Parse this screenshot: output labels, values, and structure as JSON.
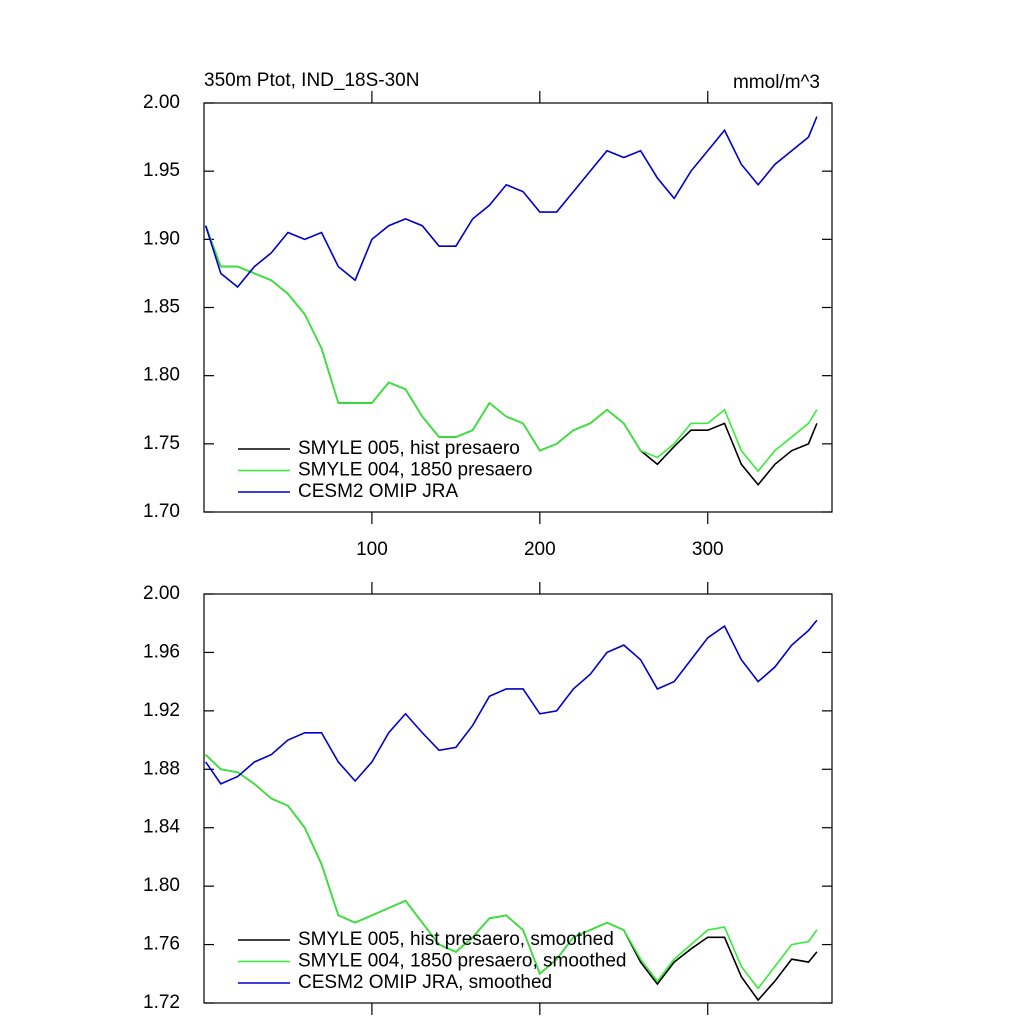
{
  "chart_data": [
    {
      "type": "line",
      "title": "350m Ptot, IND_18S-30N",
      "right_title": "mmol/m^3",
      "x": [
        1,
        10,
        20,
        30,
        40,
        50,
        60,
        70,
        80,
        90,
        100,
        110,
        120,
        130,
        140,
        150,
        160,
        170,
        180,
        190,
        200,
        210,
        220,
        230,
        240,
        250,
        260,
        270,
        280,
        290,
        300,
        310,
        320,
        330,
        340,
        350,
        360,
        365
      ],
      "series": [
        {
          "name": "SMYLE 005, hist presaero",
          "color": "#000000",
          "values": [
            1.91,
            1.88,
            1.88,
            1.875,
            1.87,
            1.86,
            1.845,
            1.82,
            1.78,
            1.78,
            1.78,
            1.795,
            1.79,
            1.77,
            1.755,
            1.755,
            1.76,
            1.78,
            1.77,
            1.765,
            1.745,
            1.75,
            1.76,
            1.765,
            1.775,
            1.765,
            1.745,
            1.735,
            1.748,
            1.76,
            1.76,
            1.765,
            1.735,
            1.72,
            1.735,
            1.745,
            1.75,
            1.765
          ]
        },
        {
          "name": "SMYLE 004, 1850 presaero",
          "color": "#33ee33",
          "values": [
            1.91,
            1.88,
            1.88,
            1.875,
            1.87,
            1.86,
            1.845,
            1.82,
            1.78,
            1.78,
            1.78,
            1.795,
            1.79,
            1.77,
            1.755,
            1.755,
            1.76,
            1.78,
            1.77,
            1.765,
            1.745,
            1.75,
            1.76,
            1.765,
            1.775,
            1.765,
            1.745,
            1.74,
            1.75,
            1.765,
            1.765,
            1.775,
            1.745,
            1.73,
            1.745,
            1.755,
            1.765,
            1.775
          ]
        },
        {
          "name": "CESM2 OMIP JRA",
          "color": "#0000cc",
          "values": [
            1.91,
            1.875,
            1.865,
            1.88,
            1.89,
            1.905,
            1.9,
            1.905,
            1.88,
            1.87,
            1.9,
            1.91,
            1.915,
            1.91,
            1.895,
            1.895,
            1.915,
            1.925,
            1.94,
            1.935,
            1.92,
            1.92,
            1.935,
            1.95,
            1.965,
            1.96,
            1.965,
            1.945,
            1.93,
            1.95,
            1.965,
            1.98,
            1.955,
            1.94,
            1.955,
            1.965,
            1.975,
            1.99
          ]
        }
      ],
      "xlim": [
        0,
        374
      ],
      "xticks": [
        100,
        200,
        300
      ],
      "ylim": [
        1.7,
        2.0
      ],
      "yticks": [
        {
          "value": 1.7,
          "label": "1.70"
        },
        1.75,
        {
          "value": 1.8,
          "label": "1.80"
        },
        1.85,
        {
          "value": 1.9,
          "label": "1.90"
        },
        1.95,
        {
          "value": 2,
          "label": "2.00"
        }
      ],
      "xtick_labels": true,
      "legend": "lower left"
    },
    {
      "type": "line",
      "x": [
        1,
        10,
        20,
        30,
        40,
        50,
        60,
        70,
        80,
        90,
        100,
        110,
        120,
        130,
        140,
        150,
        160,
        170,
        180,
        190,
        200,
        210,
        220,
        230,
        240,
        250,
        260,
        270,
        280,
        290,
        300,
        310,
        320,
        330,
        340,
        350,
        360,
        365
      ],
      "series": [
        {
          "name": "SMYLE 005, hist presaero, smoothed",
          "color": "#000000",
          "values": [
            1.89,
            1.88,
            1.878,
            1.87,
            1.86,
            1.855,
            1.84,
            1.815,
            1.78,
            1.775,
            1.78,
            1.785,
            1.79,
            1.775,
            1.76,
            1.755,
            1.765,
            1.778,
            1.78,
            1.77,
            1.74,
            1.75,
            1.765,
            1.77,
            1.775,
            1.77,
            1.748,
            1.733,
            1.748,
            1.757,
            1.765,
            1.765,
            1.738,
            1.722,
            1.735,
            1.75,
            1.748,
            1.755
          ]
        },
        {
          "name": "SMYLE 004, 1850 presaero, smoothed",
          "color": "#33ee33",
          "values": [
            1.89,
            1.88,
            1.878,
            1.87,
            1.86,
            1.855,
            1.84,
            1.815,
            1.78,
            1.775,
            1.78,
            1.785,
            1.79,
            1.775,
            1.76,
            1.755,
            1.765,
            1.778,
            1.78,
            1.77,
            1.74,
            1.75,
            1.765,
            1.77,
            1.775,
            1.77,
            1.75,
            1.735,
            1.75,
            1.76,
            1.77,
            1.772,
            1.745,
            1.73,
            1.745,
            1.76,
            1.762,
            1.77
          ]
        },
        {
          "name": "CESM2 OMIP JRA, smoothed",
          "color": "#0000cc",
          "values": [
            1.885,
            1.87,
            1.875,
            1.885,
            1.89,
            1.9,
            1.905,
            1.905,
            1.885,
            1.872,
            1.885,
            1.905,
            1.918,
            1.905,
            1.893,
            1.895,
            1.91,
            1.93,
            1.935,
            1.935,
            1.918,
            1.92,
            1.935,
            1.945,
            1.96,
            1.965,
            1.955,
            1.935,
            1.94,
            1.955,
            1.97,
            1.978,
            1.955,
            1.94,
            1.95,
            1.965,
            1.975,
            1.982
          ]
        }
      ],
      "xlim": [
        0,
        374
      ],
      "xticks": [
        100,
        200,
        300
      ],
      "ylim": [
        1.72,
        2.0
      ],
      "yticks": [
        1.72,
        1.76,
        {
          "value": 1.8,
          "label": "1.80"
        },
        1.84,
        1.88,
        1.92,
        1.96,
        {
          "value": 2,
          "label": "2.00"
        }
      ],
      "xtick_labels": false,
      "legend": "lower left"
    }
  ]
}
